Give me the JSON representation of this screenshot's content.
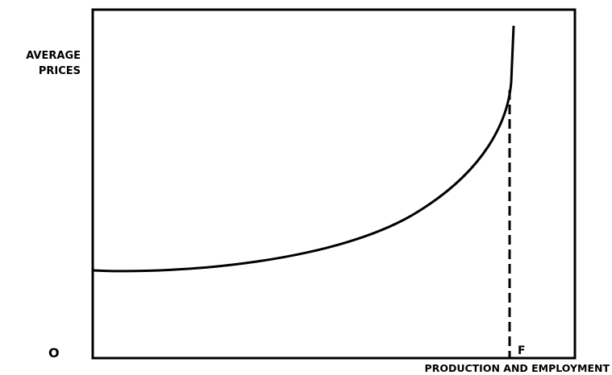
{
  "y_axis_label": [
    "AVERAGE",
    "PRICES"
  ],
  "origin_label": "O",
  "point_label": "F",
  "x_axis_label": "PRODUCTION AND EMPLOYMENT"
}
